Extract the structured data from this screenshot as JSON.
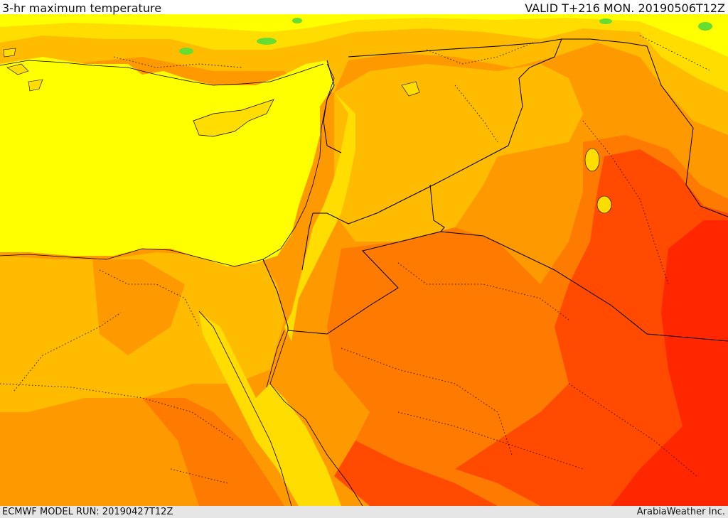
{
  "header": {
    "title": "3-hr maximum temperature",
    "valid": "VALID T+216 MON. 20190506T12Z"
  },
  "footer": {
    "model_run": "ECMWF MODEL RUN: 20190427T12Z",
    "credit": "ArabiaWeather Inc."
  },
  "map": {
    "colors": {
      "sea": "#ffff00",
      "green": "#66dd33",
      "yellow_orange": "#ffdd00",
      "light_orange": "#ffbb00",
      "orange": "#ff9900",
      "dark_orange": "#ff7a00",
      "red_orange": "#ff4a00",
      "red": "#ff2600",
      "border": "#000000"
    }
  }
}
